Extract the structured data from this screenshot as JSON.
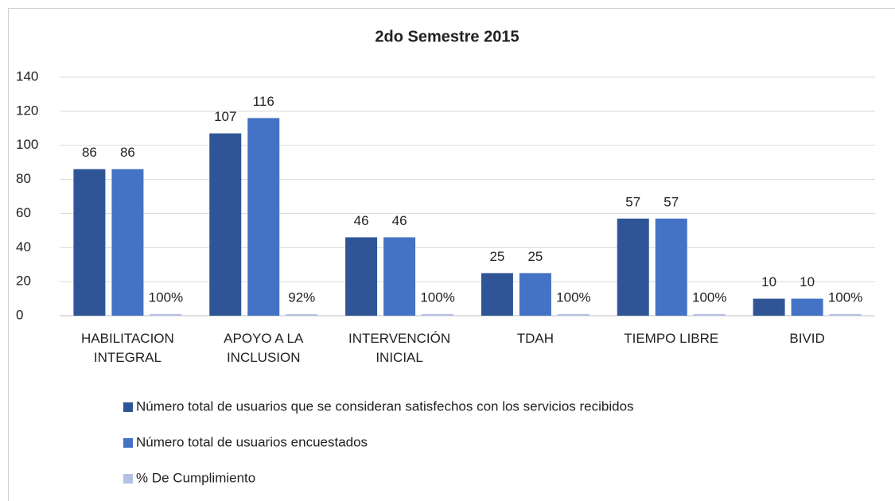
{
  "chart_data": {
    "type": "bar",
    "title": "2do Semestre 2015",
    "categories": [
      "HABILITACION INTEGRAL",
      "APOYO A LA INCLUSION",
      "INTERVENCIÓN INICIAL",
      "TDAH",
      "TIEMPO LIBRE",
      "BIVID"
    ],
    "series": [
      {
        "name": "Número total de usuarios que se consideran satisfechos con los servicios recibidos",
        "color": "#2f5597",
        "values": [
          86,
          107,
          46,
          25,
          57,
          10
        ]
      },
      {
        "name": "Número total de usuarios encuestados",
        "color": "#4472c4",
        "values": [
          86,
          116,
          46,
          25,
          57,
          10
        ]
      },
      {
        "name": "% De Cumplimiento",
        "color": "#b4c0e4",
        "values": [
          1,
          0.92,
          1,
          1,
          1,
          1
        ],
        "value_labels": [
          "100%",
          "92%",
          "100%",
          "100%",
          "100%",
          "100%"
        ]
      }
    ],
    "ylim": [
      0,
      140
    ],
    "yticks": [
      0,
      20,
      40,
      60,
      80,
      100,
      120,
      140
    ],
    "grid": true,
    "legend": "bottom"
  }
}
